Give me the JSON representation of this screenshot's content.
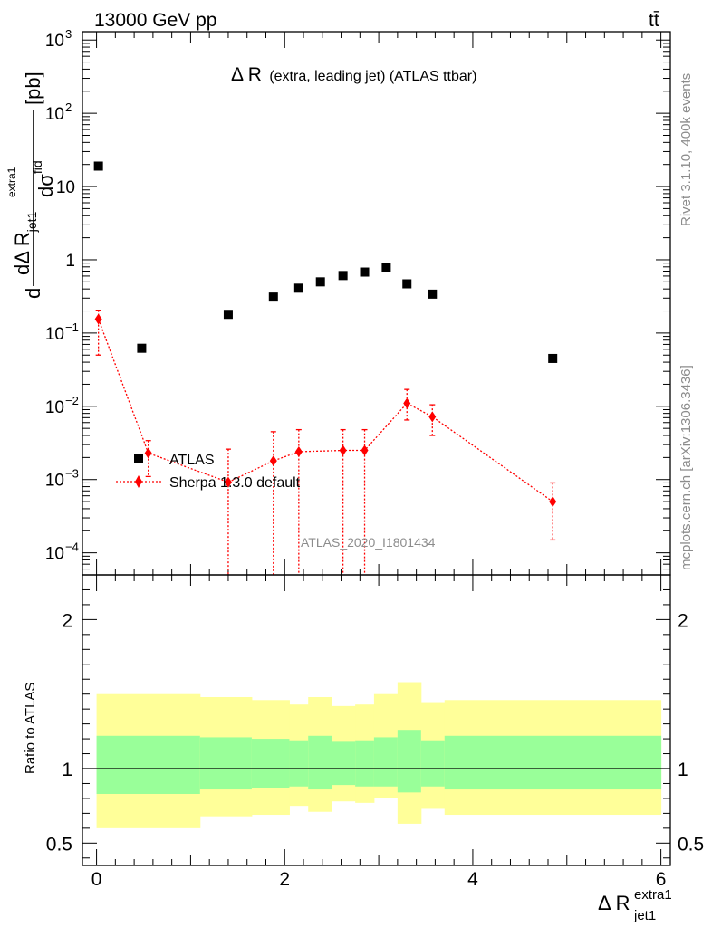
{
  "header": {
    "energy_label": "13000 GeV pp",
    "process_label": "tt̄"
  },
  "side_labels": {
    "rivet": "Rivet 3.1.10,  400k events",
    "mcplots": "mcplots.cern.ch [arXiv:1306.3436]"
  },
  "watermark": "ATLAS_2020_I1801434",
  "colors": {
    "data": "#000000",
    "mc": "#ff0000",
    "band_inner": "#99ff99",
    "band_outer": "#ffff99"
  },
  "chart_data": [
    {
      "type": "scatter",
      "title": "Δ R (extra, leading jet) (ATLAS ttbar)",
      "title_main": "Δ R",
      "title_rest": "(extra, leading jet) (ATLAS ttbar)",
      "ylabel": "dσ^fid / dΔ R_jet1^extra1 [pb]",
      "ylabel_parts": {
        "num": "dσ",
        "num_sup": "fid",
        "den": "dΔ R",
        "den_sub": "jet1",
        "den_sup": "extra1",
        "unit": "[pb]"
      },
      "yscale": "log",
      "xlim": [
        -0.15,
        6.1
      ],
      "ylim": [
        5e-05,
        1300
      ],
      "yticks": [
        {
          "value": 1000,
          "base": "10",
          "exp": "3"
        },
        {
          "value": 100,
          "base": "10",
          "exp": "2"
        },
        {
          "value": 10,
          "base": "10",
          "exp": ""
        },
        {
          "value": 1,
          "base": "1",
          "exp": ""
        },
        {
          "value": 0.1,
          "base": "10",
          "exp": "−1"
        },
        {
          "value": 0.01,
          "base": "10",
          "exp": "−2"
        },
        {
          "value": 0.001,
          "base": "10",
          "exp": "−3"
        },
        {
          "value": 0.0001,
          "base": "10",
          "exp": "−4"
        }
      ],
      "legend": {
        "position": "lower-left",
        "entries": [
          "ATLAS",
          "Sherpa 1.3.0 default"
        ]
      },
      "series": [
        {
          "name": "ATLAS",
          "marker": "square",
          "x": [
            0.02,
            0.48,
            1.4,
            1.88,
            2.15,
            2.38,
            2.62,
            2.85,
            3.08,
            3.3,
            3.57,
            4.85
          ],
          "y": [
            19,
            0.062,
            0.18,
            0.31,
            0.41,
            0.5,
            0.61,
            0.68,
            0.78,
            0.47,
            0.34,
            0.045
          ]
        },
        {
          "name": "Sherpa 1.3.0 default",
          "marker": "diamond",
          "x": [
            0.02,
            0.55,
            1.4,
            1.88,
            2.15,
            2.62,
            2.85,
            3.3,
            3.57,
            4.85
          ],
          "y": [
            0.155,
            0.0023,
            0.00092,
            0.0018,
            0.0024,
            0.0025,
            0.0025,
            0.011,
            0.0072,
            0.0005
          ],
          "yerr_low": [
            0.105,
            0.0012,
            0.00092,
            0.0018,
            0.0024,
            0.0025,
            0.0025,
            0.0045,
            0.0032,
            0.00035
          ],
          "yerr_high": [
            0.205,
            0.0034,
            0.0026,
            0.0045,
            0.0048,
            0.0048,
            0.0048,
            0.017,
            0.0105,
            0.0009
          ]
        }
      ]
    },
    {
      "type": "area",
      "ylabel": "Ratio to ATLAS",
      "xlabel": "Δ R_jet1^extra1",
      "xlabel_parts": {
        "main": "Δ R",
        "sub": "jet1",
        "sup": "extra1"
      },
      "xlim": [
        -0.15,
        6.1
      ],
      "ylim": [
        0.35,
        2.3
      ],
      "xticks": [
        0,
        2,
        4,
        6
      ],
      "yticks": [
        0.5,
        1,
        2
      ],
      "reference_line": 1,
      "bands": {
        "edges": [
          0.0,
          1.1,
          1.65,
          2.05,
          2.25,
          2.5,
          2.75,
          2.95,
          3.2,
          3.45,
          3.7,
          6.0
        ],
        "inner_low": [
          0.83,
          0.86,
          0.87,
          0.88,
          0.86,
          0.89,
          0.88,
          0.88,
          0.84,
          0.88,
          0.86
        ],
        "inner_high": [
          1.22,
          1.21,
          1.2,
          1.19,
          1.22,
          1.18,
          1.19,
          1.21,
          1.26,
          1.19,
          1.22
        ],
        "outer_low": [
          0.6,
          0.68,
          0.69,
          0.75,
          0.71,
          0.78,
          0.77,
          0.8,
          0.63,
          0.73,
          0.69
        ],
        "outer_high": [
          1.5,
          1.48,
          1.46,
          1.43,
          1.48,
          1.42,
          1.43,
          1.5,
          1.58,
          1.44,
          1.46
        ]
      }
    }
  ]
}
